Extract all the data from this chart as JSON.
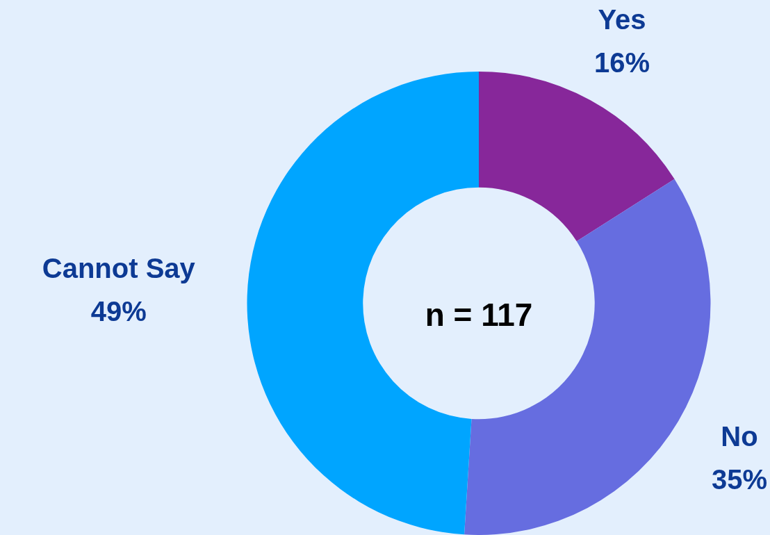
{
  "chart_data": {
    "type": "donut",
    "categories": [
      "Yes",
      "No",
      "Cannot Say"
    ],
    "values": [
      16,
      35,
      49
    ],
    "colors": [
      "#87279a",
      "#666de0",
      "#00a5ff"
    ],
    "value_labels": [
      "16%",
      "35%",
      "49%"
    ],
    "annotations": [
      "n = 117"
    ],
    "legend": false
  }
}
